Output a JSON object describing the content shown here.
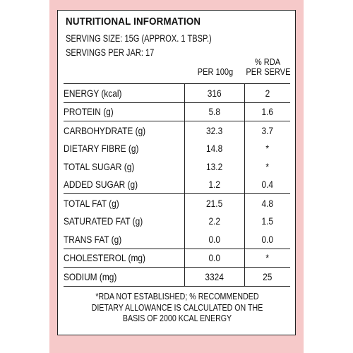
{
  "label": {
    "title": "NUTRITIONAL  INFORMATION",
    "serving_size": "SERVING SIZE: 15G (APPROX. 1 TBSP.)",
    "servings_per_jar": "SERVINGS PER JAR: 17",
    "col_per100g": "PER 100g",
    "col_rda_line1": "% RDA",
    "col_rda_line2": "PER SERVE",
    "rows": [
      {
        "name": "ENERGY (kcal)",
        "per100g": "316",
        "rda": "2"
      },
      {
        "name": "PROTEIN (g)",
        "per100g": "5.8",
        "rda": "1.6"
      },
      {
        "name": "CARBOHYDRATE (g)",
        "per100g": "32.3",
        "rda": "3.7"
      },
      {
        "name": "DIETARY FIBRE (g)",
        "per100g": "14.8",
        "rda": "*"
      },
      {
        "name": "TOTAL SUGAR (g)",
        "per100g": "13.2",
        "rda": "*"
      },
      {
        "name": "ADDED SUGAR (g)",
        "per100g": "1.2",
        "rda": "0.4"
      },
      {
        "name": "TOTAL FAT (g)",
        "per100g": "21.5",
        "rda": "4.8"
      },
      {
        "name": "SATURATED FAT (g)",
        "per100g": "2.2",
        "rda": "1.5"
      },
      {
        "name": "TRANS FAT (g)",
        "per100g": "0.0",
        "rda": "0.0"
      },
      {
        "name": "CHOLESTEROL (mg)",
        "per100g": "0.0",
        "rda": "*"
      },
      {
        "name": "SODIUM (mg)",
        "per100g": "3324",
        "rda": "25"
      }
    ],
    "footnote_line1": "*RDA NOT ESTABLISHED; % RECOMMENDED",
    "footnote_line2": "DIETARY ALLOWANCE IS CALCULATED ON THE",
    "footnote_line3": "BASIS OF 2000 KCAL ENERGY"
  }
}
